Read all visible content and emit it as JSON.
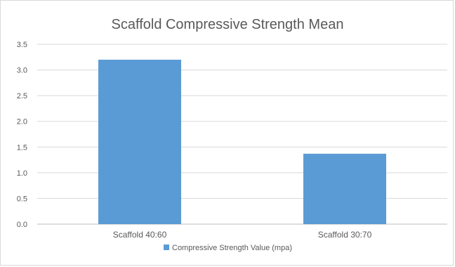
{
  "chart_data": {
    "type": "bar",
    "title": "Scaffold Compressive Strength Mean",
    "categories": [
      "Scaffold 40:60",
      "Scaffold 30:70"
    ],
    "series": [
      {
        "name": "Compressive Strength Value (mpa)",
        "values": [
          3.2,
          1.37
        ],
        "color": "#5b9bd5"
      }
    ],
    "xlabel": "",
    "ylabel": "",
    "ylim": [
      0,
      3.5
    ],
    "yticks": [
      "0.0",
      "0.5",
      "1.0",
      "1.5",
      "2.0",
      "2.5",
      "3.0",
      "3.5"
    ],
    "grid": true,
    "legend_position": "bottom"
  }
}
